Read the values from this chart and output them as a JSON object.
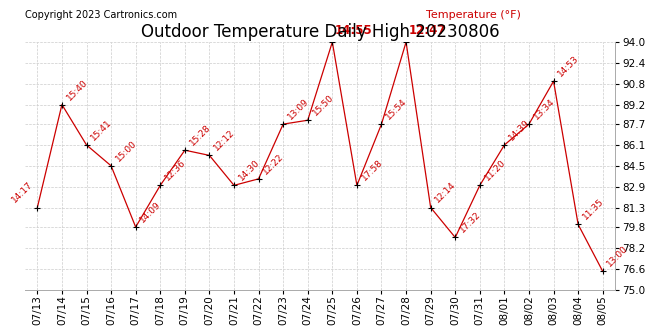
{
  "title": "Outdoor Temperature Daily High 20230806",
  "ylabel": "Temperature (°F)",
  "copyright": "Copyright 2023 Cartronics.com",
  "background_color": "#ffffff",
  "grid_color": "#cccccc",
  "line_color": "#cc0000",
  "point_color": "#000000",
  "label_color": "#cc0000",
  "dates": [
    "07/13",
    "07/14",
    "07/15",
    "07/16",
    "07/17",
    "07/18",
    "07/19",
    "07/20",
    "07/21",
    "07/22",
    "07/23",
    "07/24",
    "07/25",
    "07/26",
    "07/27",
    "07/28",
    "07/29",
    "07/30",
    "07/31",
    "08/01",
    "08/02",
    "08/03",
    "08/04",
    "08/05"
  ],
  "temps": [
    81.3,
    89.2,
    86.1,
    84.5,
    79.8,
    83.0,
    85.7,
    85.3,
    83.0,
    83.5,
    87.7,
    88.0,
    94.0,
    83.0,
    87.7,
    94.0,
    81.3,
    79.0,
    83.0,
    86.1,
    87.7,
    91.0,
    80.0,
    76.4
  ],
  "times": [
    "14:17",
    "15:40",
    "15:41",
    "15:00",
    "14:09",
    "12:36",
    "15:28",
    "12:12",
    "14:30",
    "12:22",
    "13:09",
    "15:50",
    "14:55",
    "17:58",
    "15:54",
    "12:47",
    "12:14",
    "17:32",
    "11:20",
    "14:39",
    "13:34",
    "14:53",
    "11:35",
    "13:00"
  ],
  "ylim": [
    75.0,
    94.0
  ],
  "yticks": [
    75.0,
    76.6,
    78.2,
    79.8,
    81.3,
    82.9,
    84.5,
    86.1,
    87.7,
    89.2,
    90.8,
    92.4,
    94.0
  ],
  "title_fontsize": 12,
  "label_fontsize": 6.5,
  "tick_fontsize": 7.5,
  "copyright_fontsize": 7,
  "ylabel_fontsize": 8,
  "special_labels": [
    "14:55",
    "12:47"
  ],
  "special_fontsize": 8.5
}
